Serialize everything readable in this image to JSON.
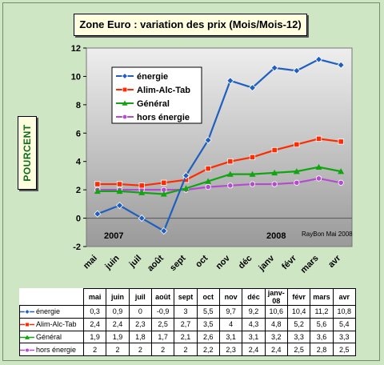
{
  "colors": {
    "background": "#cfe6c4",
    "plot_area_top": "#eeeeee",
    "plot_area_bottom": "#9a9a9a"
  },
  "chart_data": {
    "type": "line",
    "title": "Zone Euro : variation des prix (Mois/Mois-12)",
    "ylabel": "POURCENT",
    "xlabel": "",
    "categories": [
      "mai",
      "juin",
      "juil",
      "août",
      "sept",
      "oct",
      "nov",
      "déc",
      "janv",
      "févr",
      "mars",
      "avr"
    ],
    "table_headers": [
      "mai",
      "juin",
      "juil",
      "août",
      "sept",
      "oct",
      "nov",
      "déc",
      "janv-08",
      "févr",
      "mars",
      "avr"
    ],
    "ylim": [
      -2,
      12
    ],
    "yticks": [
      -2,
      0,
      2,
      4,
      6,
      8,
      10,
      12
    ],
    "grid": false,
    "legend_position": "top-left",
    "year_labels": [
      "2007",
      "2008"
    ],
    "credit": "RayBon Mai 2008",
    "series": [
      {
        "name": "énergie",
        "color": "#1f5fbf",
        "marker": "diamond",
        "values": [
          0.3,
          0.9,
          0.0,
          -0.9,
          3.0,
          5.5,
          9.7,
          9.2,
          10.6,
          10.4,
          11.2,
          10.8
        ],
        "labels": [
          "0,3",
          "0,9",
          "0",
          "-0,9",
          "3",
          "5,5",
          "9,7",
          "9,2",
          "10,6",
          "10,4",
          "11,2",
          "10,8"
        ]
      },
      {
        "name": "Alim-Alc-Tab",
        "color": "#ff2a00",
        "marker": "square",
        "values": [
          2.4,
          2.4,
          2.3,
          2.5,
          2.7,
          3.5,
          4.0,
          4.3,
          4.8,
          5.2,
          5.6,
          5.4
        ],
        "labels": [
          "2,4",
          "2,4",
          "2,3",
          "2,5",
          "2,7",
          "3,5",
          "4",
          "4,3",
          "4,8",
          "5,2",
          "5,6",
          "5,4"
        ]
      },
      {
        "name": "Général",
        "color": "#11a611",
        "marker": "triangle",
        "values": [
          1.9,
          1.9,
          1.8,
          1.7,
          2.1,
          2.6,
          3.1,
          3.1,
          3.2,
          3.3,
          3.6,
          3.3
        ],
        "labels": [
          "1,9",
          "1,9",
          "1,8",
          "1,7",
          "2,1",
          "2,6",
          "3,1",
          "3,1",
          "3,2",
          "3,3",
          "3,6",
          "3,3"
        ]
      },
      {
        "name": "hors énergie",
        "color": "#b44bcf",
        "marker": "circle",
        "values": [
          2,
          2,
          2,
          2,
          2,
          2.2,
          2.3,
          2.4,
          2.4,
          2.5,
          2.8,
          2.5
        ],
        "labels": [
          "2",
          "2",
          "2",
          "2",
          "2",
          "2,2",
          "2,3",
          "2,4",
          "2,4",
          "2,5",
          "2,8",
          "2,5"
        ]
      }
    ]
  }
}
